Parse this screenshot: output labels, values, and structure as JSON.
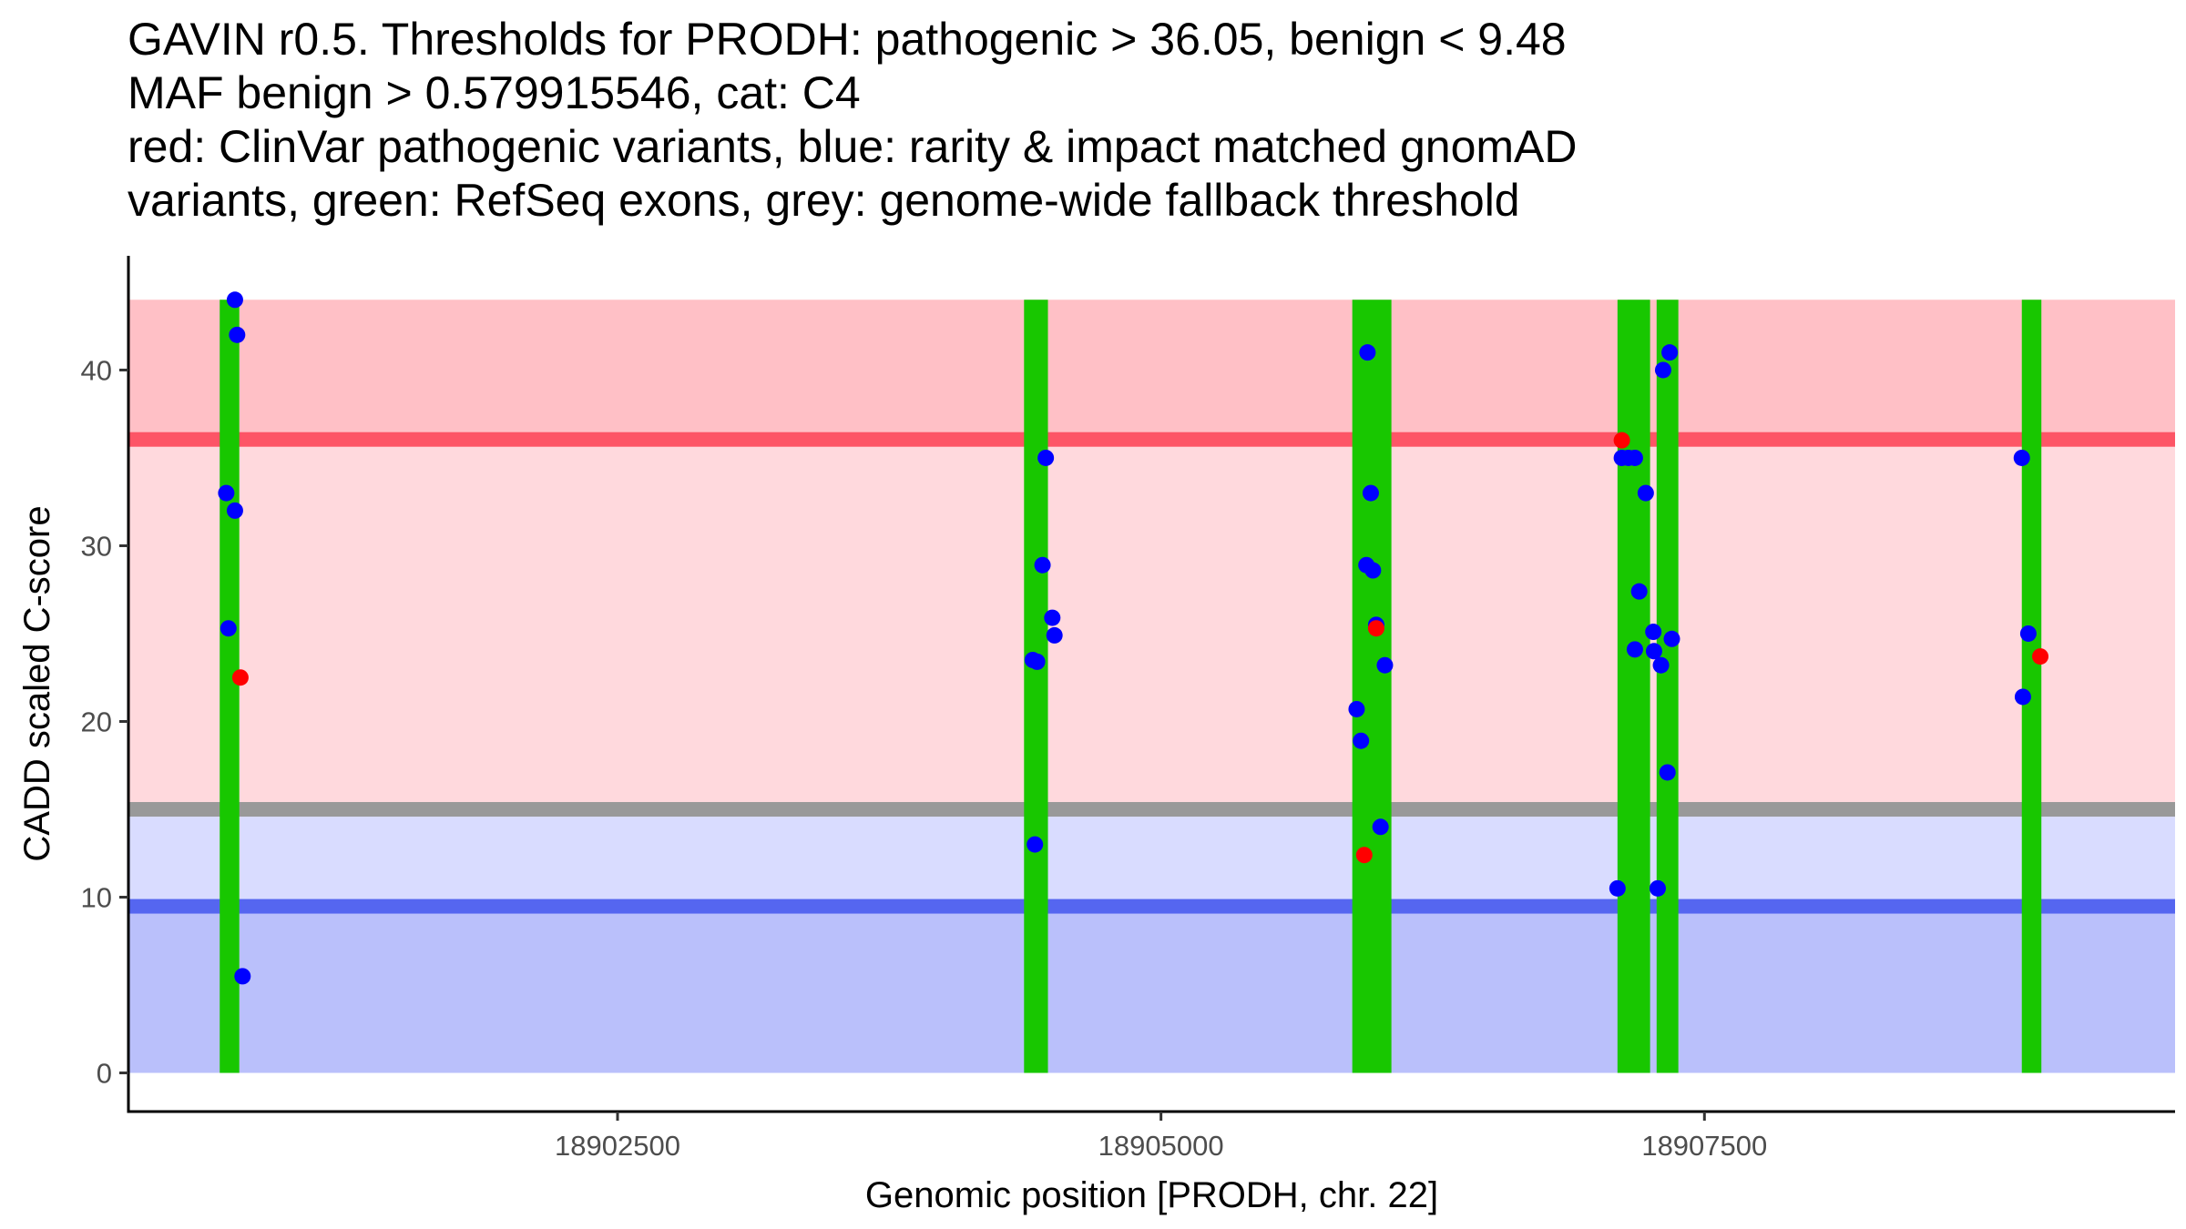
{
  "title_lines": [
    "GAVIN r0.5. Thresholds for PRODH: pathogenic > 36.05, benign < 9.48",
    "MAF benign > 0.579915546, cat: C4",
    "red: ClinVar pathogenic variants, blue: rarity & impact matched gnomAD",
    "variants, green: RefSeq exons, grey: genome-wide fallback threshold"
  ],
  "chart_data": {
    "type": "scatter",
    "xlabel": "Genomic position [PRODH, chr. 22]",
    "ylabel": "CADD scaled C-score",
    "xlim": [
      18900250,
      18909665
    ],
    "ylim": [
      -2.2,
      46.5
    ],
    "x_ticks": [
      18902500,
      18905000,
      18907500
    ],
    "x_tick_labels": [
      "18902500",
      "18905000",
      "18907500"
    ],
    "y_ticks": [
      0,
      10,
      20,
      30,
      40
    ],
    "y_tick_labels": [
      "0",
      "10",
      "20",
      "30",
      "40"
    ],
    "thresholds": {
      "pathogenic": 36.05,
      "benign": 9.48,
      "genome_wide_fallback": 15,
      "max_score": 44
    },
    "bands": [
      {
        "name": "pathogenic-zone",
        "y0": 36.05,
        "y1": 44,
        "color": "#ffc0c6"
      },
      {
        "name": "pathogenic-grey-zone",
        "y0": 15,
        "y1": 36.05,
        "color": "#ffd9dd"
      },
      {
        "name": "benign-grey-zone",
        "y0": 9.48,
        "y1": 15,
        "color": "#d9dcff"
      },
      {
        "name": "benign-zone",
        "y0": 0,
        "y1": 9.48,
        "color": "#bac0fb"
      }
    ],
    "threshold_lines": [
      {
        "name": "pathogenic-threshold-line",
        "y": 36.05,
        "color": "#fd5566"
      },
      {
        "name": "fallback-threshold-line",
        "y": 15,
        "color": "#999999"
      },
      {
        "name": "benign-threshold-line",
        "y": 9.48,
        "color": "#5566f0"
      }
    ],
    "exons": [
      {
        "start": 18900670,
        "end": 18900760
      },
      {
        "start": 18904370,
        "end": 18904480
      },
      {
        "start": 18905880,
        "end": 18906060
      },
      {
        "start": 18907100,
        "end": 18907250
      },
      {
        "start": 18907280,
        "end": 18907380
      },
      {
        "start": 18908960,
        "end": 18909050
      }
    ],
    "series": [
      {
        "name": "gnomAD variants",
        "color": "#0000ff",
        "points": [
          {
            "x": 18900740,
            "y": 44
          },
          {
            "x": 18900750,
            "y": 42
          },
          {
            "x": 18900700,
            "y": 33
          },
          {
            "x": 18900740,
            "y": 32
          },
          {
            "x": 18900710,
            "y": 25.3
          },
          {
            "x": 18900775,
            "y": 5.5
          },
          {
            "x": 18904470,
            "y": 35
          },
          {
            "x": 18904455,
            "y": 28.9
          },
          {
            "x": 18904500,
            "y": 25.9
          },
          {
            "x": 18904510,
            "y": 24.9
          },
          {
            "x": 18904410,
            "y": 23.5
          },
          {
            "x": 18904430,
            "y": 23.4
          },
          {
            "x": 18904420,
            "y": 13
          },
          {
            "x": 18905950,
            "y": 41
          },
          {
            "x": 18905965,
            "y": 33
          },
          {
            "x": 18905945,
            "y": 28.9
          },
          {
            "x": 18905975,
            "y": 28.6
          },
          {
            "x": 18905990,
            "y": 25.5
          },
          {
            "x": 18906030,
            "y": 23.2
          },
          {
            "x": 18905900,
            "y": 20.7
          },
          {
            "x": 18905920,
            "y": 18.9
          },
          {
            "x": 18906010,
            "y": 14
          },
          {
            "x": 18907120,
            "y": 35
          },
          {
            "x": 18907150,
            "y": 35
          },
          {
            "x": 18907180,
            "y": 35
          },
          {
            "x": 18907230,
            "y": 33
          },
          {
            "x": 18907200,
            "y": 27.4
          },
          {
            "x": 18907180,
            "y": 24.1
          },
          {
            "x": 18907100,
            "y": 10.5
          },
          {
            "x": 18907340,
            "y": 41
          },
          {
            "x": 18907310,
            "y": 40
          },
          {
            "x": 18907265,
            "y": 25.1
          },
          {
            "x": 18907350,
            "y": 24.7
          },
          {
            "x": 18907268,
            "y": 24
          },
          {
            "x": 18907300,
            "y": 23.2
          },
          {
            "x": 18907330,
            "y": 17.1
          },
          {
            "x": 18907285,
            "y": 10.5
          },
          {
            "x": 18908960,
            "y": 35
          },
          {
            "x": 18908990,
            "y": 25
          },
          {
            "x": 18908965,
            "y": 21.4
          }
        ]
      },
      {
        "name": "ClinVar pathogenic variants",
        "color": "#ff0000",
        "points": [
          {
            "x": 18900765,
            "y": 22.5
          },
          {
            "x": 18905990,
            "y": 25.3
          },
          {
            "x": 18905935,
            "y": 12.4
          },
          {
            "x": 18907120,
            "y": 36
          },
          {
            "x": 18909045,
            "y": 23.7
          }
        ]
      }
    ]
  }
}
